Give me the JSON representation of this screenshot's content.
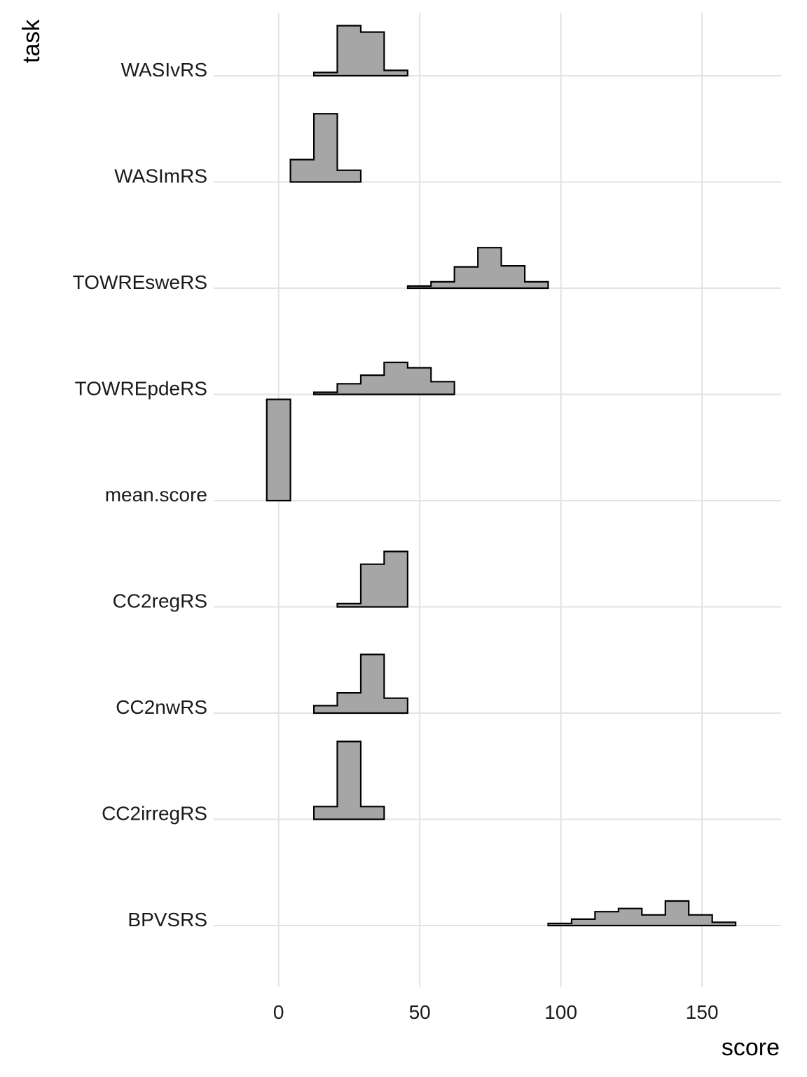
{
  "chart_data": {
    "type": "ridgeline-histogram",
    "xlabel": "score",
    "ylabel": "task",
    "xlim": [
      -23,
      178
    ],
    "x_ticks": [
      0,
      50,
      100,
      150
    ],
    "grid": true,
    "categories": [
      "BPVSRS",
      "CC2irregRS",
      "CC2nwRS",
      "CC2regRS",
      "mean.score",
      "TOWREpdeRS",
      "TOWREsweRS",
      "WASImRS",
      "WASIvRS"
    ],
    "series": [
      {
        "task": "BPVSRS",
        "bin_edges": [
          95.5,
          103.8,
          112.1,
          120.4,
          128.7,
          137.0,
          145.3,
          153.6,
          161.9
        ],
        "heights": [
          0.02,
          0.06,
          0.13,
          0.16,
          0.1,
          0.23,
          0.1,
          0.03
        ]
      },
      {
        "task": "CC2irregRS",
        "bin_edges": [
          12.5,
          20.8,
          29.1,
          37.4
        ],
        "heights": [
          0.12,
          0.73,
          0.12
        ]
      },
      {
        "task": "CC2nwRS",
        "bin_edges": [
          12.5,
          20.8,
          29.1,
          37.4,
          45.7
        ],
        "heights": [
          0.07,
          0.19,
          0.55,
          0.14
        ]
      },
      {
        "task": "CC2regRS",
        "bin_edges": [
          20.8,
          29.1,
          37.4,
          45.7
        ],
        "heights": [
          0.03,
          0.4,
          0.52
        ]
      },
      {
        "task": "mean.score",
        "bin_edges": [
          -4.2,
          4.2
        ],
        "heights": [
          0.95
        ]
      },
      {
        "task": "TOWREpdeRS",
        "bin_edges": [
          12.5,
          20.8,
          29.1,
          37.4,
          45.7,
          54.0,
          62.3
        ],
        "heights": [
          0.02,
          0.1,
          0.18,
          0.3,
          0.25,
          0.12
        ]
      },
      {
        "task": "TOWREsweRS",
        "bin_edges": [
          45.7,
          54.0,
          62.3,
          70.6,
          78.9,
          87.2,
          95.5
        ],
        "heights": [
          0.02,
          0.06,
          0.2,
          0.38,
          0.21,
          0.06
        ]
      },
      {
        "task": "WASImRS",
        "bin_edges": [
          4.2,
          12.5,
          20.8,
          29.1
        ],
        "heights": [
          0.21,
          0.64,
          0.11
        ]
      },
      {
        "task": "WASIvRS",
        "bin_edges": [
          12.5,
          20.8,
          29.1,
          37.4,
          45.7
        ],
        "heights": [
          0.03,
          0.47,
          0.41,
          0.05
        ]
      }
    ]
  }
}
